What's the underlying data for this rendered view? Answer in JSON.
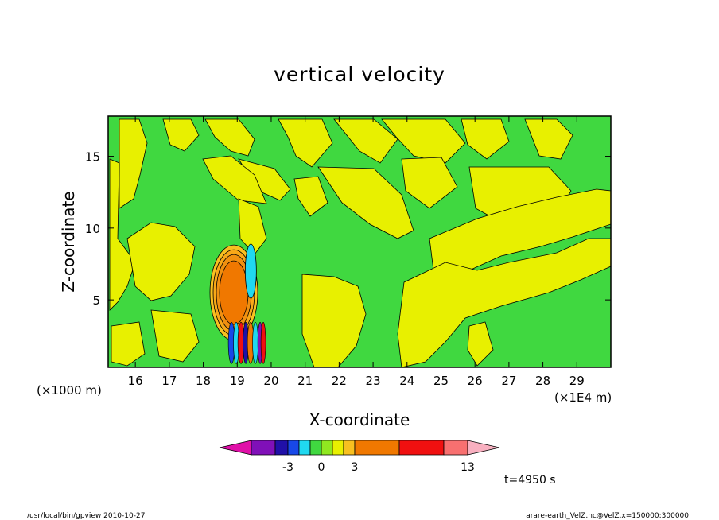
{
  "chart_data": {
    "type": "heatmap",
    "title": "vertical velocity",
    "xlabel": "X-coordinate",
    "ylabel": "Z-coordinate",
    "xlim": [
      15.2,
      30.0
    ],
    "ylim": [
      0.3,
      17.8
    ],
    "x_ticks": [
      16,
      17,
      18,
      19,
      20,
      21,
      22,
      23,
      24,
      25,
      26,
      27,
      28,
      29
    ],
    "y_ticks": [
      5,
      10,
      15
    ],
    "x_tick_labels": [
      "16",
      "17",
      "18",
      "19",
      "20",
      "21",
      "22",
      "23",
      "24",
      "25",
      "26",
      "27",
      "28",
      "29"
    ],
    "y_tick_labels": [
      "5",
      "10",
      "15"
    ],
    "x_multiplier_label": "(×1E4 m)",
    "y_multiplier_label": "(×1000 m)",
    "time_label": "t=4950 s",
    "colorbar": {
      "tick_labels": [
        "-3",
        "0",
        "3",
        "13"
      ],
      "colors": [
        "#e010a8",
        "#8010b8",
        "#2010a8",
        "#1848e8",
        "#20d8f0",
        "#40d840",
        "#90e820",
        "#e8f000",
        "#f8c020",
        "#f07800",
        "#f01010",
        "#f87070",
        "#f8b0c0"
      ]
    },
    "features": [
      {
        "name": "updraft",
        "x": 18.9,
        "z": 5.5,
        "w_max": 7
      },
      {
        "name": "downdraft",
        "x": 19.4,
        "z": 7.0,
        "w_min": -2
      },
      {
        "name": "updraft-core",
        "x": 19.3,
        "z": 2.0,
        "w_max": 13
      },
      {
        "name": "downdraft-core",
        "x": 19.6,
        "z": 1.5,
        "w_min": -3
      }
    ]
  },
  "footer": {
    "left": "/usr/local/bin/gpview  2010-10-27",
    "right": "arare-earth_VelZ.nc@VelZ,x=150000:300000"
  }
}
